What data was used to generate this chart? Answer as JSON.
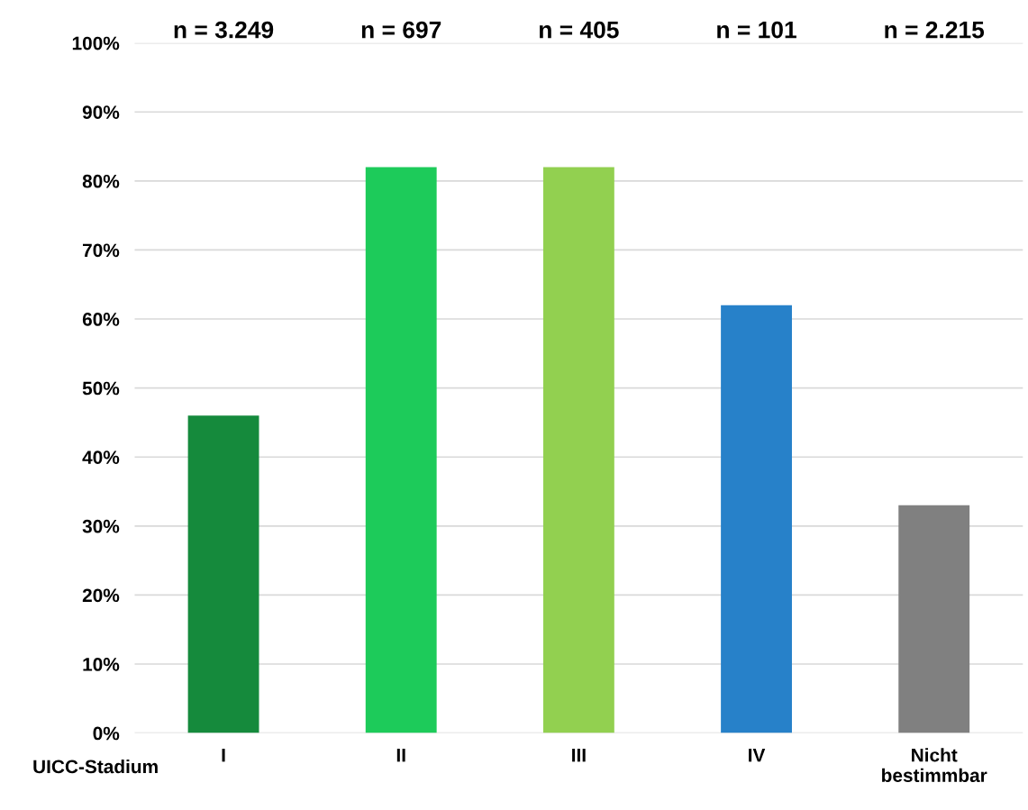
{
  "chart_data": {
    "type": "bar",
    "xlabel": "UICC-Stadium",
    "categories": [
      "I",
      "II",
      "III",
      "IV",
      "Nicht\nbestimmbar"
    ],
    "values": [
      46,
      82,
      82,
      62,
      33
    ],
    "colors": [
      "#158a3c",
      "#1dcb5a",
      "#92d050",
      "#2781c9",
      "#808080"
    ],
    "annotations": [
      "n = 3.249",
      "n = 697",
      "n = 405",
      "n = 101",
      "n = 2.215"
    ],
    "ylim": [
      0,
      100
    ],
    "yticks": [
      {
        "value": 0,
        "label": "0%"
      },
      {
        "value": 10,
        "label": "10%"
      },
      {
        "value": 20,
        "label": "20%"
      },
      {
        "value": 30,
        "label": "30%"
      },
      {
        "value": 40,
        "label": "40%"
      },
      {
        "value": 50,
        "label": "50%"
      },
      {
        "value": 60,
        "label": "60%"
      },
      {
        "value": 70,
        "label": "70%"
      },
      {
        "value": 80,
        "label": "80%"
      },
      {
        "value": 90,
        "label": "90%"
      },
      {
        "value": 100,
        "label": "100%"
      }
    ],
    "grid": "y",
    "legend": false
  }
}
